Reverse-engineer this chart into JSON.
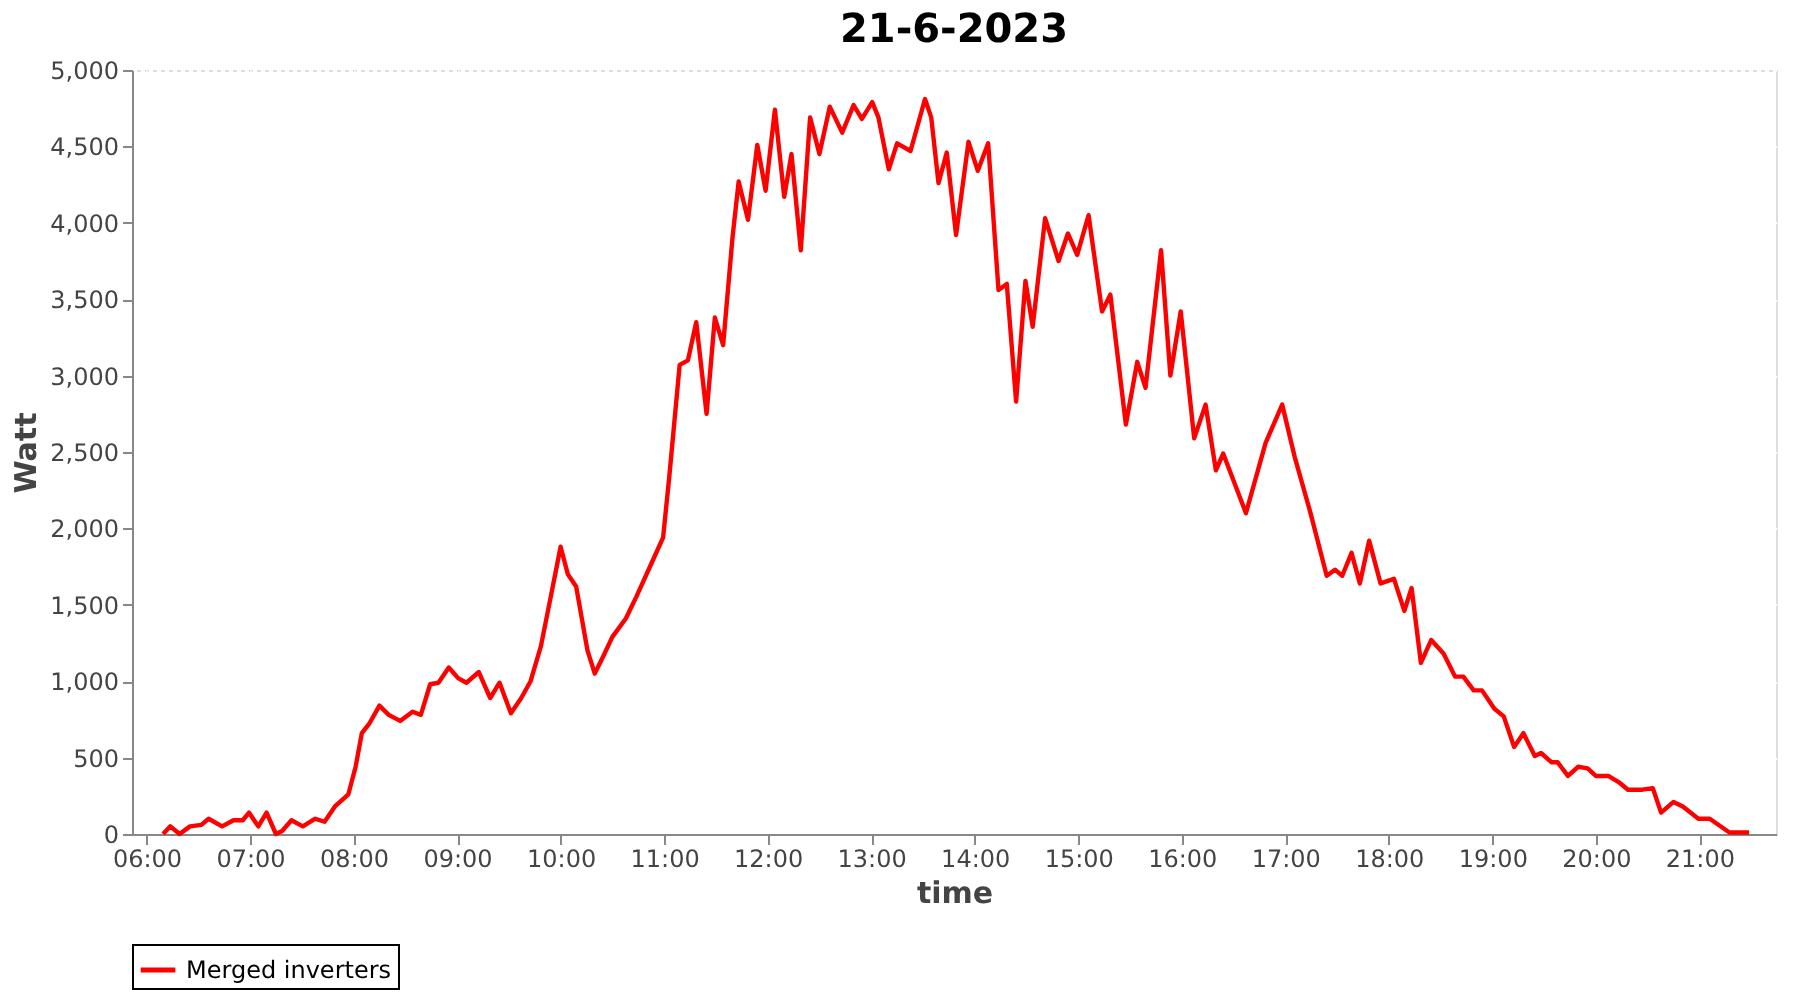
{
  "chart_data": {
    "type": "line",
    "title": "21-6-2023",
    "xlabel": "time",
    "ylabel": "Watt",
    "xlim": [
      5.86,
      21.74
    ],
    "ylim": [
      0,
      5000
    ],
    "xticks": [
      {
        "value": 6,
        "label": "06:00"
      },
      {
        "value": 7,
        "label": "07:00"
      },
      {
        "value": 8,
        "label": "08:00"
      },
      {
        "value": 9,
        "label": "09:00"
      },
      {
        "value": 10,
        "label": "10:00"
      },
      {
        "value": 11,
        "label": "11:00"
      },
      {
        "value": 12,
        "label": "12:00"
      },
      {
        "value": 13,
        "label": "13:00"
      },
      {
        "value": 14,
        "label": "14:00"
      },
      {
        "value": 15,
        "label": "15:00"
      },
      {
        "value": 16,
        "label": "16:00"
      },
      {
        "value": 17,
        "label": "17:00"
      },
      {
        "value": 18,
        "label": "18:00"
      },
      {
        "value": 19,
        "label": "19:00"
      },
      {
        "value": 20,
        "label": "20:00"
      },
      {
        "value": 21,
        "label": "21:00"
      }
    ],
    "yticks": [
      0,
      500,
      {
        "value": 1000,
        "label": "1,000"
      },
      {
        "value": 1500,
        "label": "1,500"
      },
      {
        "value": 2000,
        "label": "2,000"
      },
      {
        "value": 2500,
        "label": "2,500"
      },
      {
        "value": 3000,
        "label": "3,000"
      },
      {
        "value": 3500,
        "label": "3,500"
      },
      {
        "value": 4000,
        "label": "4,000"
      },
      {
        "value": 4500,
        "label": "4,500"
      },
      {
        "value": 5000,
        "label": "5,000"
      }
    ],
    "grid": true,
    "legend": "bottom",
    "marker": "none",
    "line_style": "solid",
    "series": [
      {
        "name": "Merged inverters",
        "color": "#ff0000",
        "x": [
          6.16,
          6.23,
          6.32,
          6.42,
          6.53,
          6.6,
          6.73,
          6.84,
          6.93,
          6.99,
          7.08,
          7.16,
          7.25,
          7.31,
          7.4,
          7.51,
          7.63,
          7.72,
          7.82,
          7.95,
          8.02,
          8.08,
          8.15,
          8.25,
          8.34,
          8.45,
          8.57,
          8.65,
          8.74,
          8.82,
          8.92,
          9.01,
          9.09,
          9.21,
          9.32,
          9.41,
          9.52,
          9.62,
          9.71,
          9.81,
          9.91,
          10.0,
          10.07,
          10.15,
          10.26,
          10.33,
          10.41,
          10.5,
          10.63,
          10.73,
          10.89,
          10.99,
          11.05,
          11.15,
          11.23,
          11.31,
          11.41,
          11.49,
          11.57,
          11.66,
          11.72,
          11.81,
          11.9,
          11.98,
          12.07,
          12.16,
          12.23,
          12.32,
          12.41,
          12.5,
          12.6,
          12.72,
          12.83,
          12.91,
          13.01,
          13.07,
          13.17,
          13.25,
          13.38,
          13.52,
          13.58,
          13.65,
          13.73,
          13.82,
          13.94,
          14.03,
          14.13,
          14.23,
          14.31,
          14.4,
          14.49,
          14.56,
          14.68,
          14.81,
          14.9,
          14.99,
          15.1,
          15.23,
          15.31,
          15.46,
          15.57,
          15.65,
          15.8,
          15.89,
          15.99,
          16.12,
          16.23,
          16.33,
          16.4,
          16.62,
          16.81,
          16.97,
          17.09,
          17.24,
          17.4,
          17.48,
          17.55,
          17.64,
          17.72,
          17.81,
          17.92,
          18.05,
          18.15,
          18.22,
          18.31,
          18.41,
          18.53,
          18.64,
          18.72,
          18.82,
          18.9,
          19.02,
          19.11,
          19.21,
          19.3,
          19.41,
          19.47,
          19.57,
          19.63,
          19.73,
          19.83,
          19.92,
          20.0,
          20.12,
          20.22,
          20.31,
          20.45,
          20.55,
          20.63,
          20.75,
          20.84,
          20.99,
          21.1,
          21.29,
          21.48
        ],
        "values": [
          0,
          50,
          0,
          50,
          60,
          100,
          50,
          90,
          90,
          140,
          50,
          140,
          0,
          20,
          90,
          50,
          100,
          80,
          180,
          260,
          440,
          660,
          720,
          840,
          780,
          740,
          800,
          780,
          980,
          990,
          1090,
          1020,
          990,
          1060,
          890,
          990,
          790,
          890,
          1000,
          1230,
          1570,
          1880,
          1700,
          1620,
          1200,
          1050,
          1160,
          1290,
          1410,
          1550,
          1790,
          1940,
          2340,
          3070,
          3100,
          3350,
          2750,
          3380,
          3200,
          3900,
          4270,
          4020,
          4510,
          4210,
          4740,
          4170,
          4450,
          3820,
          4690,
          4450,
          4760,
          4590,
          4770,
          4680,
          4790,
          4690,
          4350,
          4520,
          4470,
          4810,
          4690,
          4260,
          4460,
          3920,
          4530,
          4340,
          4520,
          3560,
          3600,
          2830,
          3620,
          3320,
          4030,
          3750,
          3930,
          3790,
          4050,
          3420,
          3530,
          2680,
          3090,
          2920,
          3820,
          3000,
          3420,
          2590,
          2810,
          2380,
          2490,
          2100,
          2560,
          2810,
          2470,
          2110,
          1690,
          1730,
          1690,
          1840,
          1640,
          1920,
          1640,
          1670,
          1460,
          1610,
          1120,
          1270,
          1180,
          1030,
          1030,
          940,
          940,
          820,
          770,
          570,
          660,
          510,
          530,
          470,
          470,
          380,
          440,
          430,
          380,
          380,
          340,
          290,
          290,
          300,
          140,
          210,
          180,
          100,
          100,
          10,
          10
        ]
      }
    ]
  }
}
